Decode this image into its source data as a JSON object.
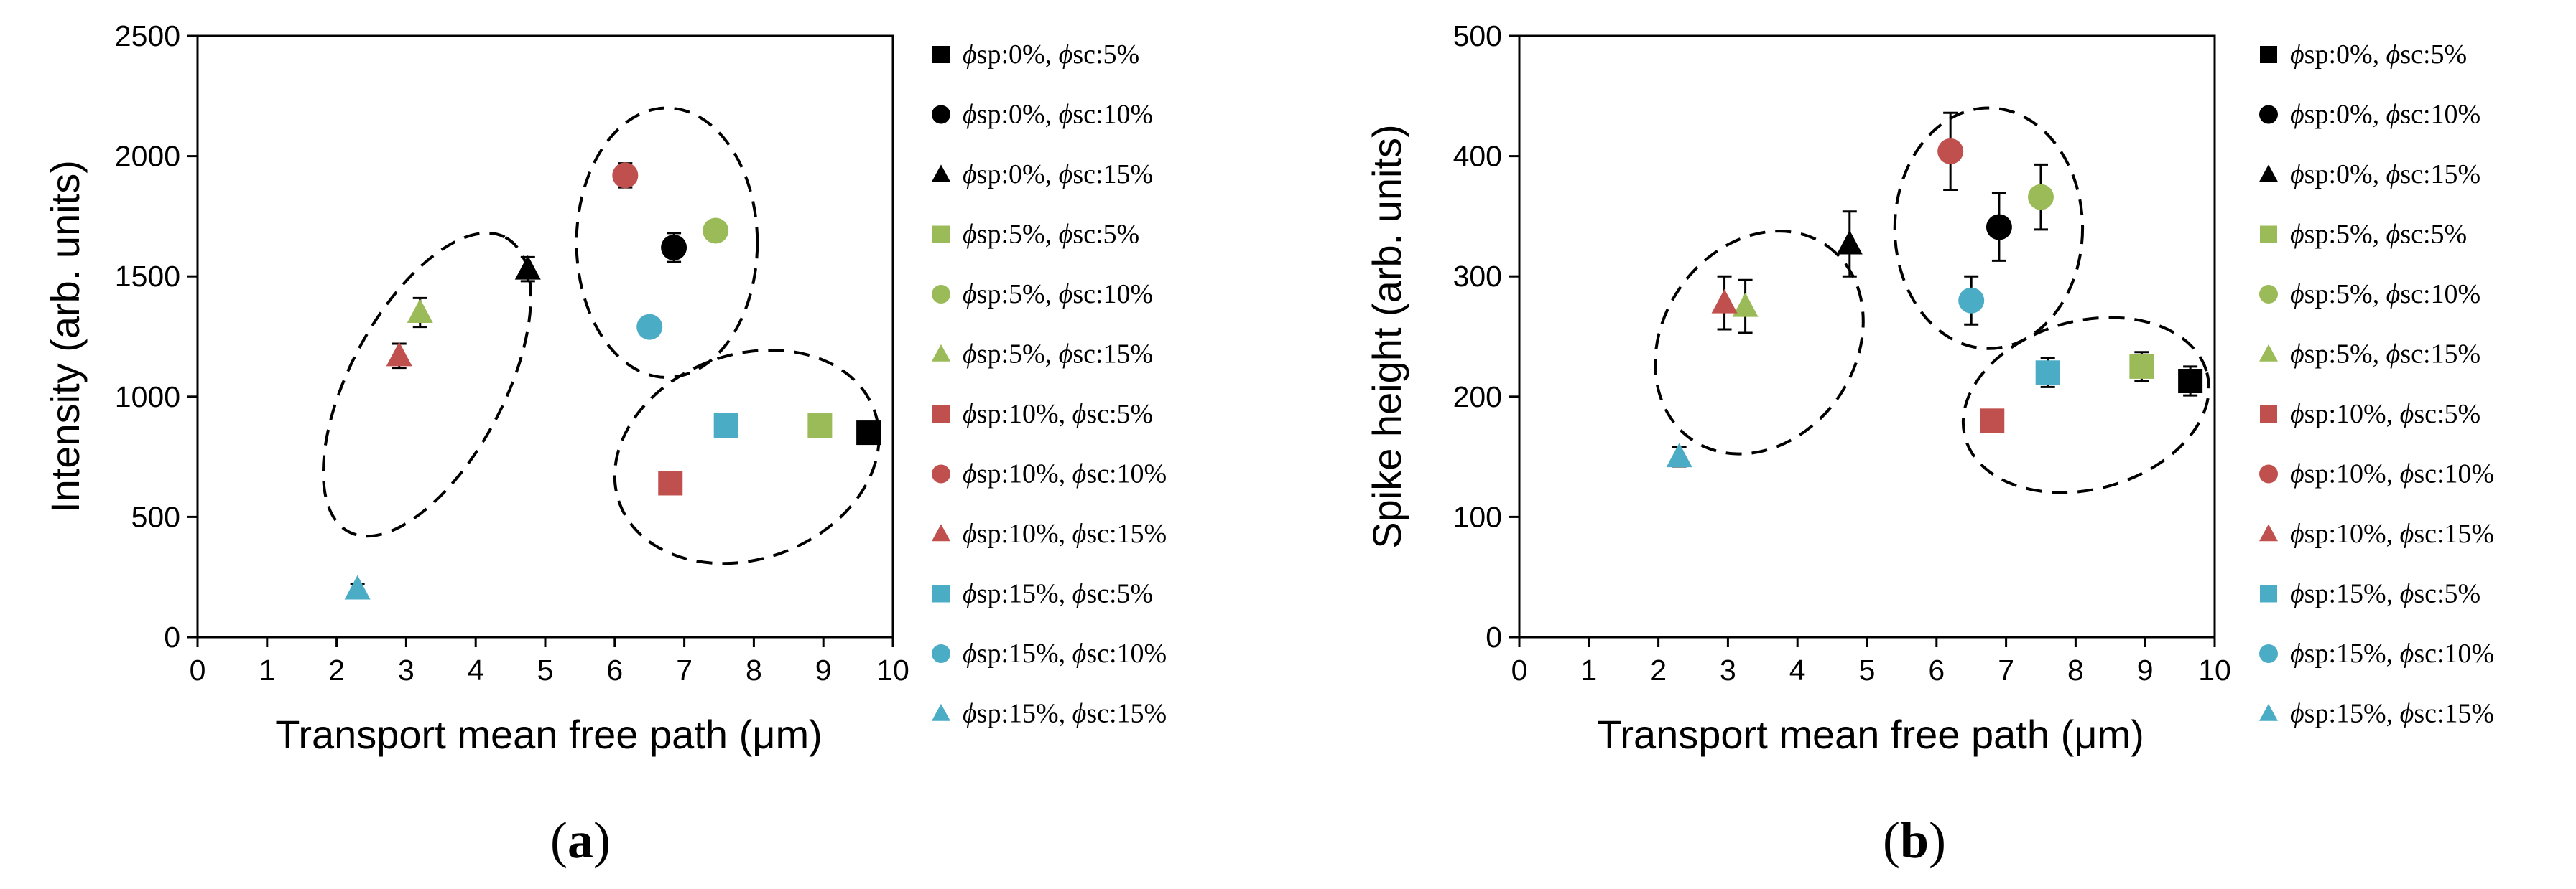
{
  "colors": {
    "black": "#000000",
    "green": "#9BBB59",
    "red": "#C0504D",
    "blue": "#4BACC6"
  },
  "chart_data": [
    {
      "type": "scatter",
      "panel_label": "a",
      "xlabel": "Transport mean free path (μm)",
      "ylabel": "Intensity (arb. units)",
      "xlim": [
        0,
        10
      ],
      "ylim": [
        0,
        2500
      ],
      "xticks": [
        "0",
        "1",
        "2",
        "3",
        "4",
        "5",
        "6",
        "7",
        "8",
        "9",
        "10"
      ],
      "yticks": [
        "0",
        "500",
        "1000",
        "1500",
        "2000",
        "2500"
      ],
      "series": [
        {
          "sp": "0%",
          "sc": "5%",
          "marker": "square",
          "color": "black",
          "x": 9.65,
          "y": 850,
          "err": 30
        },
        {
          "sp": "0%",
          "sc": "10%",
          "marker": "circle",
          "color": "black",
          "x": 6.85,
          "y": 1620,
          "err": 60
        },
        {
          "sp": "0%",
          "sc": "15%",
          "marker": "triangle",
          "color": "black",
          "x": 4.75,
          "y": 1530,
          "err": 50
        },
        {
          "sp": "5%",
          "sc": "5%",
          "marker": "square",
          "color": "green",
          "x": 8.95,
          "y": 880,
          "err": 20
        },
        {
          "sp": "5%",
          "sc": "10%",
          "marker": "circle",
          "color": "green",
          "x": 7.45,
          "y": 1690,
          "err": 20
        },
        {
          "sp": "5%",
          "sc": "15%",
          "marker": "triangle",
          "color": "green",
          "x": 3.2,
          "y": 1350,
          "err": 60
        },
        {
          "sp": "10%",
          "sc": "5%",
          "marker": "square",
          "color": "red",
          "x": 6.8,
          "y": 640,
          "err": 20
        },
        {
          "sp": "10%",
          "sc": "10%",
          "marker": "circle",
          "color": "red",
          "x": 6.15,
          "y": 1920,
          "err": 50
        },
        {
          "sp": "10%",
          "sc": "15%",
          "marker": "triangle",
          "color": "red",
          "x": 2.9,
          "y": 1170,
          "err": 50
        },
        {
          "sp": "15%",
          "sc": "5%",
          "marker": "square",
          "color": "blue",
          "x": 7.6,
          "y": 880,
          "err": 20
        },
        {
          "sp": "15%",
          "sc": "10%",
          "marker": "circle",
          "color": "blue",
          "x": 6.5,
          "y": 1290,
          "err": 20
        },
        {
          "sp": "15%",
          "sc": "15%",
          "marker": "triangle",
          "color": "blue",
          "x": 2.3,
          "y": 200,
          "err": 20
        }
      ],
      "clusters": [
        {
          "cx": 3.3,
          "cy": 1050,
          "rx": 2.4,
          "ry": 320,
          "angle": -62
        },
        {
          "cx": 6.75,
          "cy": 1640,
          "rx": 1.3,
          "ry": 560,
          "angle": 0
        },
        {
          "cx": 7.9,
          "cy": 750,
          "rx": 1.95,
          "ry": 425,
          "angle": -20
        }
      ]
    },
    {
      "type": "scatter",
      "panel_label": "b",
      "xlabel": "Transport mean free path (μm)",
      "ylabel": "Spike height (arb. units)",
      "xlim": [
        0,
        10
      ],
      "ylim": [
        0,
        500
      ],
      "xticks": [
        "0",
        "1",
        "2",
        "3",
        "4",
        "5",
        "6",
        "7",
        "8",
        "9",
        "10"
      ],
      "yticks": [
        "0",
        "100",
        "200",
        "300",
        "400",
        "500"
      ],
      "series": [
        {
          "sp": "0%",
          "sc": "5%",
          "marker": "square",
          "color": "black",
          "x": 9.65,
          "y": 213,
          "err": 12
        },
        {
          "sp": "0%",
          "sc": "10%",
          "marker": "circle",
          "color": "black",
          "x": 6.9,
          "y": 341,
          "err": 28
        },
        {
          "sp": "0%",
          "sc": "15%",
          "marker": "triangle",
          "color": "black",
          "x": 4.75,
          "y": 327,
          "err": 27
        },
        {
          "sp": "5%",
          "sc": "5%",
          "marker": "square",
          "color": "green",
          "x": 8.95,
          "y": 225,
          "err": 12
        },
        {
          "sp": "5%",
          "sc": "10%",
          "marker": "circle",
          "color": "green",
          "x": 7.5,
          "y": 366,
          "err": 27
        },
        {
          "sp": "5%",
          "sc": "15%",
          "marker": "triangle",
          "color": "green",
          "x": 3.25,
          "y": 275,
          "err": 22
        },
        {
          "sp": "10%",
          "sc": "5%",
          "marker": "square",
          "color": "red",
          "x": 6.8,
          "y": 180,
          "err": 7
        },
        {
          "sp": "10%",
          "sc": "10%",
          "marker": "circle",
          "color": "red",
          "x": 6.2,
          "y": 404,
          "err": 32
        },
        {
          "sp": "10%",
          "sc": "15%",
          "marker": "triangle",
          "color": "red",
          "x": 2.95,
          "y": 278,
          "err": 22
        },
        {
          "sp": "15%",
          "sc": "5%",
          "marker": "square",
          "color": "blue",
          "x": 7.6,
          "y": 220,
          "err": 12
        },
        {
          "sp": "15%",
          "sc": "10%",
          "marker": "circle",
          "color": "blue",
          "x": 6.5,
          "y": 280,
          "err": 20
        },
        {
          "sp": "15%",
          "sc": "15%",
          "marker": "triangle",
          "color": "blue",
          "x": 2.3,
          "y": 150,
          "err": 8
        }
      ],
      "clusters": [
        {
          "cx": 3.45,
          "cy": 245,
          "rx": 1.7,
          "ry": 80,
          "angle": -55
        },
        {
          "cx": 6.75,
          "cy": 340,
          "rx": 1.35,
          "ry": 100,
          "angle": 0
        },
        {
          "cx": 8.15,
          "cy": 193,
          "rx": 1.8,
          "ry": 70,
          "angle": -15
        }
      ]
    }
  ]
}
